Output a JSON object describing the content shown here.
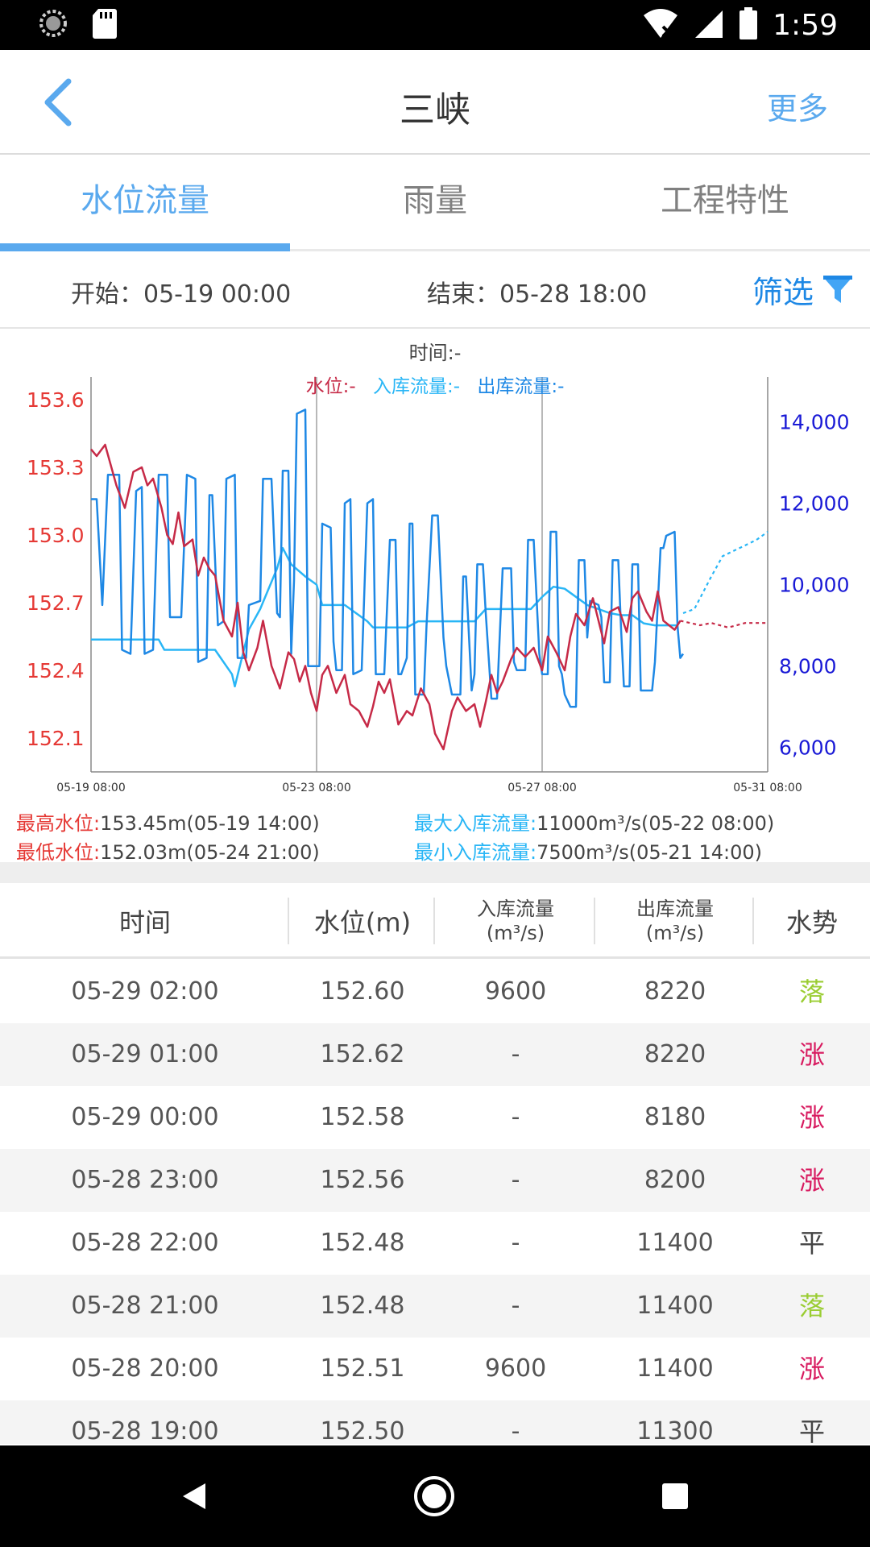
{
  "status_bar": {
    "time": "1:59"
  },
  "header": {
    "title": "三峡",
    "more_label": "更多"
  },
  "tabs": [
    {
      "label": "水位流量",
      "active": true
    },
    {
      "label": "雨量",
      "active": false
    },
    {
      "label": "工程特性",
      "active": false
    }
  ],
  "filter": {
    "start": "开始：05-19 00:00",
    "end": "结束：05-28 18:00",
    "button_label": "筛选"
  },
  "chart_data": {
    "type": "line",
    "time_label": "时间:-",
    "legend": {
      "level": "水位:-",
      "inflow": "入库流量:-",
      "outflow": "出库流量:-"
    },
    "x_ticks": [
      "05-19 08:00",
      "05-23 08:00",
      "05-27 08:00",
      "05-31 08:00"
    ],
    "y_left_ticks": [
      "153.6",
      "153.3",
      "153.0",
      "152.7",
      "152.4",
      "152.1"
    ],
    "y_left_range": [
      151.95,
      153.7
    ],
    "y_right_ticks": [
      "14,000",
      "12,000",
      "10,000",
      "8,000",
      "6,000"
    ],
    "y_right_range": [
      5400,
      15100
    ],
    "x_range_days": [
      0,
      12
    ],
    "colors": {
      "level": "#c62a47",
      "inflow": "#29b6f6",
      "outflow": "#1e88e5",
      "left_axis": "#e53935",
      "right_axis": "#1a1ad6"
    },
    "series_level": [
      [
        0,
        153.38
      ],
      [
        0.1,
        153.35
      ],
      [
        0.25,
        153.4
      ],
      [
        0.45,
        153.22
      ],
      [
        0.6,
        153.12
      ],
      [
        0.75,
        153.28
      ],
      [
        0.9,
        153.3
      ],
      [
        1.0,
        153.22
      ],
      [
        1.1,
        153.25
      ],
      [
        1.25,
        153.12
      ],
      [
        1.35,
        153.0
      ],
      [
        1.45,
        152.96
      ],
      [
        1.55,
        153.1
      ],
      [
        1.65,
        152.95
      ],
      [
        1.8,
        152.98
      ],
      [
        1.9,
        152.82
      ],
      [
        2.0,
        152.9
      ],
      [
        2.1,
        152.85
      ],
      [
        2.2,
        152.82
      ],
      [
        2.35,
        152.62
      ],
      [
        2.5,
        152.55
      ],
      [
        2.6,
        152.7
      ],
      [
        2.7,
        152.48
      ],
      [
        2.8,
        152.4
      ],
      [
        2.95,
        152.5
      ],
      [
        3.05,
        152.62
      ],
      [
        3.2,
        152.42
      ],
      [
        3.35,
        152.32
      ],
      [
        3.5,
        152.48
      ],
      [
        3.6,
        152.45
      ],
      [
        3.7,
        152.35
      ],
      [
        3.8,
        152.42
      ],
      [
        3.9,
        152.3
      ],
      [
        4.0,
        152.22
      ],
      [
        4.1,
        152.38
      ],
      [
        4.2,
        152.42
      ],
      [
        4.35,
        152.3
      ],
      [
        4.5,
        152.38
      ],
      [
        4.6,
        152.25
      ],
      [
        4.75,
        152.22
      ],
      [
        4.9,
        152.15
      ],
      [
        5.0,
        152.24
      ],
      [
        5.1,
        152.35
      ],
      [
        5.2,
        152.3
      ],
      [
        5.3,
        152.36
      ],
      [
        5.45,
        152.16
      ],
      [
        5.6,
        152.22
      ],
      [
        5.7,
        152.2
      ],
      [
        5.85,
        152.32
      ],
      [
        6.0,
        152.25
      ],
      [
        6.1,
        152.12
      ],
      [
        6.25,
        152.05
      ],
      [
        6.4,
        152.22
      ],
      [
        6.5,
        152.28
      ],
      [
        6.65,
        152.22
      ],
      [
        6.8,
        152.25
      ],
      [
        6.9,
        152.15
      ],
      [
        7.0,
        152.26
      ],
      [
        7.1,
        152.38
      ],
      [
        7.2,
        152.3
      ],
      [
        7.3,
        152.35
      ],
      [
        7.45,
        152.45
      ],
      [
        7.55,
        152.5
      ],
      [
        7.7,
        152.46
      ],
      [
        7.85,
        152.5
      ],
      [
        8.0,
        152.4
      ],
      [
        8.1,
        152.55
      ],
      [
        8.25,
        152.48
      ],
      [
        8.4,
        152.4
      ],
      [
        8.5,
        152.55
      ],
      [
        8.6,
        152.65
      ],
      [
        8.75,
        152.6
      ],
      [
        8.9,
        152.72
      ],
      [
        9.0,
        152.62
      ],
      [
        9.1,
        152.52
      ],
      [
        9.2,
        152.66
      ],
      [
        9.35,
        152.68
      ],
      [
        9.5,
        152.57
      ],
      [
        9.6,
        152.72
      ],
      [
        9.7,
        152.75
      ],
      [
        9.85,
        152.66
      ],
      [
        9.95,
        152.62
      ],
      [
        10.05,
        152.75
      ],
      [
        10.15,
        152.62
      ],
      [
        10.25,
        152.6
      ],
      [
        10.35,
        152.58
      ],
      [
        10.45,
        152.62
      ]
    ],
    "series_level_forecast": [
      [
        10.45,
        152.62
      ],
      [
        10.8,
        152.6
      ],
      [
        11.0,
        152.61
      ],
      [
        11.3,
        152.59
      ],
      [
        11.6,
        152.61
      ],
      [
        12.0,
        152.61
      ]
    ],
    "series_inflow": [
      [
        0,
        8650
      ],
      [
        1.0,
        8650
      ],
      [
        1.2,
        8650
      ],
      [
        1.3,
        8400
      ],
      [
        1.6,
        8400
      ],
      [
        1.9,
        8400
      ],
      [
        2.2,
        8400
      ],
      [
        2.5,
        7800
      ],
      [
        2.55,
        7500
      ],
      [
        2.8,
        8900
      ],
      [
        3.0,
        9400
      ],
      [
        3.3,
        10400
      ],
      [
        3.4,
        10900
      ],
      [
        3.55,
        10500
      ],
      [
        3.8,
        10200
      ],
      [
        4.0,
        10000
      ],
      [
        4.1,
        9500
      ],
      [
        4.5,
        9500
      ],
      [
        4.7,
        9300
      ],
      [
        4.9,
        9100
      ],
      [
        5.0,
        8950
      ],
      [
        5.3,
        8950
      ],
      [
        5.6,
        8950
      ],
      [
        5.8,
        9100
      ],
      [
        6.0,
        9100
      ],
      [
        6.3,
        9100
      ],
      [
        6.6,
        9100
      ],
      [
        6.8,
        9100
      ],
      [
        7.0,
        9400
      ],
      [
        7.3,
        9400
      ],
      [
        7.6,
        9400
      ],
      [
        7.8,
        9400
      ],
      [
        8.0,
        9700
      ],
      [
        8.2,
        9950
      ],
      [
        8.4,
        9900
      ],
      [
        8.6,
        9700
      ],
      [
        8.8,
        9500
      ],
      [
        9.0,
        9400
      ],
      [
        9.2,
        9300
      ],
      [
        9.4,
        9250
      ],
      [
        9.6,
        9250
      ],
      [
        9.8,
        9050
      ],
      [
        10.0,
        9000
      ],
      [
        10.2,
        9000
      ],
      [
        10.4,
        9000
      ]
    ],
    "series_inflow_forecast": [
      [
        10.5,
        9300
      ],
      [
        10.7,
        9400
      ],
      [
        11.0,
        10200
      ],
      [
        11.2,
        10700
      ],
      [
        11.5,
        10900
      ],
      [
        11.8,
        11100
      ],
      [
        12.0,
        11300
      ]
    ],
    "series_outflow": [
      [
        0,
        12100
      ],
      [
        0.1,
        12100
      ],
      [
        0.2,
        9500
      ],
      [
        0.3,
        12700
      ],
      [
        0.5,
        12700
      ],
      [
        0.55,
        8400
      ],
      [
        0.7,
        8300
      ],
      [
        0.8,
        12300
      ],
      [
        0.9,
        12400
      ],
      [
        0.95,
        8300
      ],
      [
        1.1,
        8400
      ],
      [
        1.2,
        12700
      ],
      [
        1.35,
        12700
      ],
      [
        1.4,
        9200
      ],
      [
        1.6,
        9200
      ],
      [
        1.7,
        12700
      ],
      [
        1.85,
        12600
      ],
      [
        1.9,
        8100
      ],
      [
        2.05,
        8200
      ],
      [
        2.1,
        12200
      ],
      [
        2.15,
        12200
      ],
      [
        2.25,
        9000
      ],
      [
        2.35,
        9100
      ],
      [
        2.4,
        12600
      ],
      [
        2.55,
        12700
      ],
      [
        2.6,
        8200
      ],
      [
        2.75,
        8200
      ],
      [
        2.8,
        9500
      ],
      [
        3.0,
        9600
      ],
      [
        3.05,
        12600
      ],
      [
        3.2,
        12600
      ],
      [
        3.3,
        9300
      ],
      [
        3.35,
        9200
      ],
      [
        3.4,
        12800
      ],
      [
        3.5,
        12800
      ],
      [
        3.55,
        8300
      ],
      [
        3.6,
        10100
      ],
      [
        3.65,
        14200
      ],
      [
        3.8,
        14300
      ],
      [
        3.85,
        8000
      ],
      [
        4.05,
        8000
      ],
      [
        4.1,
        11500
      ],
      [
        4.25,
        11400
      ],
      [
        4.3,
        8600
      ],
      [
        4.35,
        7900
      ],
      [
        4.45,
        7900
      ],
      [
        4.5,
        12000
      ],
      [
        4.6,
        12100
      ],
      [
        4.65,
        7800
      ],
      [
        4.8,
        7900
      ],
      [
        4.9,
        12000
      ],
      [
        5.0,
        12100
      ],
      [
        5.05,
        7800
      ],
      [
        5.2,
        7800
      ],
      [
        5.3,
        11100
      ],
      [
        5.4,
        11100
      ],
      [
        5.45,
        7800
      ],
      [
        5.5,
        7800
      ],
      [
        5.6,
        8200
      ],
      [
        5.65,
        11500
      ],
      [
        5.7,
        11500
      ],
      [
        5.75,
        7300
      ],
      [
        5.9,
        7300
      ],
      [
        5.95,
        9000
      ],
      [
        6.05,
        11700
      ],
      [
        6.15,
        11700
      ],
      [
        6.25,
        8700
      ],
      [
        6.3,
        8000
      ],
      [
        6.4,
        7300
      ],
      [
        6.55,
        7300
      ],
      [
        6.6,
        10200
      ],
      [
        6.65,
        10200
      ],
      [
        6.75,
        7400
      ],
      [
        6.8,
        7800
      ],
      [
        6.85,
        10500
      ],
      [
        6.95,
        10500
      ],
      [
        7.0,
        9300
      ],
      [
        7.1,
        7200
      ],
      [
        7.2,
        7200
      ],
      [
        7.3,
        10400
      ],
      [
        7.45,
        10400
      ],
      [
        7.5,
        8100
      ],
      [
        7.55,
        7900
      ],
      [
        7.7,
        7900
      ],
      [
        7.75,
        11100
      ],
      [
        7.85,
        11100
      ],
      [
        7.95,
        8300
      ],
      [
        8.0,
        7800
      ],
      [
        8.1,
        7800
      ],
      [
        8.15,
        11300
      ],
      [
        8.25,
        11300
      ],
      [
        8.3,
        8000
      ],
      [
        8.35,
        7800
      ],
      [
        8.4,
        7300
      ],
      [
        8.5,
        7000
      ],
      [
        8.6,
        7000
      ],
      [
        8.65,
        10600
      ],
      [
        8.75,
        10600
      ],
      [
        8.8,
        8700
      ],
      [
        8.85,
        9600
      ],
      [
        9.0,
        9500
      ],
      [
        9.05,
        9200
      ],
      [
        9.1,
        7600
      ],
      [
        9.2,
        7600
      ],
      [
        9.25,
        10600
      ],
      [
        9.35,
        10600
      ],
      [
        9.4,
        8900
      ],
      [
        9.45,
        7500
      ],
      [
        9.55,
        7500
      ],
      [
        9.6,
        10500
      ],
      [
        9.7,
        10500
      ],
      [
        9.75,
        7400
      ],
      [
        9.95,
        7400
      ],
      [
        10.0,
        8100
      ],
      [
        10.1,
        10900
      ],
      [
        10.15,
        10900
      ],
      [
        10.2,
        11200
      ],
      [
        10.35,
        11300
      ],
      [
        10.4,
        9000
      ],
      [
        10.45,
        8200
      ],
      [
        10.5,
        8300
      ]
    ],
    "stats": {
      "max_level_label": "最高水位:",
      "max_level_value": "153.45m(05-19 14:00)",
      "min_level_label": "最低水位:",
      "min_level_value": "152.03m(05-24 21:00)",
      "max_inflow_label": "最大入库流量:",
      "max_inflow_value": "11000m³/s(05-22 08:00)",
      "min_inflow_label": "最小入库流量:",
      "min_inflow_value": "7500m³/s(05-21 14:00)"
    }
  },
  "table": {
    "headers": {
      "time": "时间",
      "level": "水位(m)",
      "inflow_top": "入库流量",
      "inflow_bottom": "(m³/s)",
      "outflow_top": "出库流量",
      "outflow_bottom": "(m³/s)",
      "trend": "水势"
    },
    "trend_colors": {
      "落": "#9acd32",
      "涨": "#d81b60",
      "平": "#444444"
    },
    "rows": [
      {
        "time": "05-29 02:00",
        "level": "152.60",
        "inflow": "9600",
        "outflow": "8220",
        "trend": "落"
      },
      {
        "time": "05-29 01:00",
        "level": "152.62",
        "inflow": "-",
        "outflow": "8220",
        "trend": "涨"
      },
      {
        "time": "05-29 00:00",
        "level": "152.58",
        "inflow": "-",
        "outflow": "8180",
        "trend": "涨"
      },
      {
        "time": "05-28 23:00",
        "level": "152.56",
        "inflow": "-",
        "outflow": "8200",
        "trend": "涨"
      },
      {
        "time": "05-28 22:00",
        "level": "152.48",
        "inflow": "-",
        "outflow": "11400",
        "trend": "平"
      },
      {
        "time": "05-28 21:00",
        "level": "152.48",
        "inflow": "-",
        "outflow": "11400",
        "trend": "落"
      },
      {
        "time": "05-28 20:00",
        "level": "152.51",
        "inflow": "9600",
        "outflow": "11400",
        "trend": "涨"
      },
      {
        "time": "05-28 19:00",
        "level": "152.50",
        "inflow": "-",
        "outflow": "11300",
        "trend": "平"
      }
    ]
  }
}
